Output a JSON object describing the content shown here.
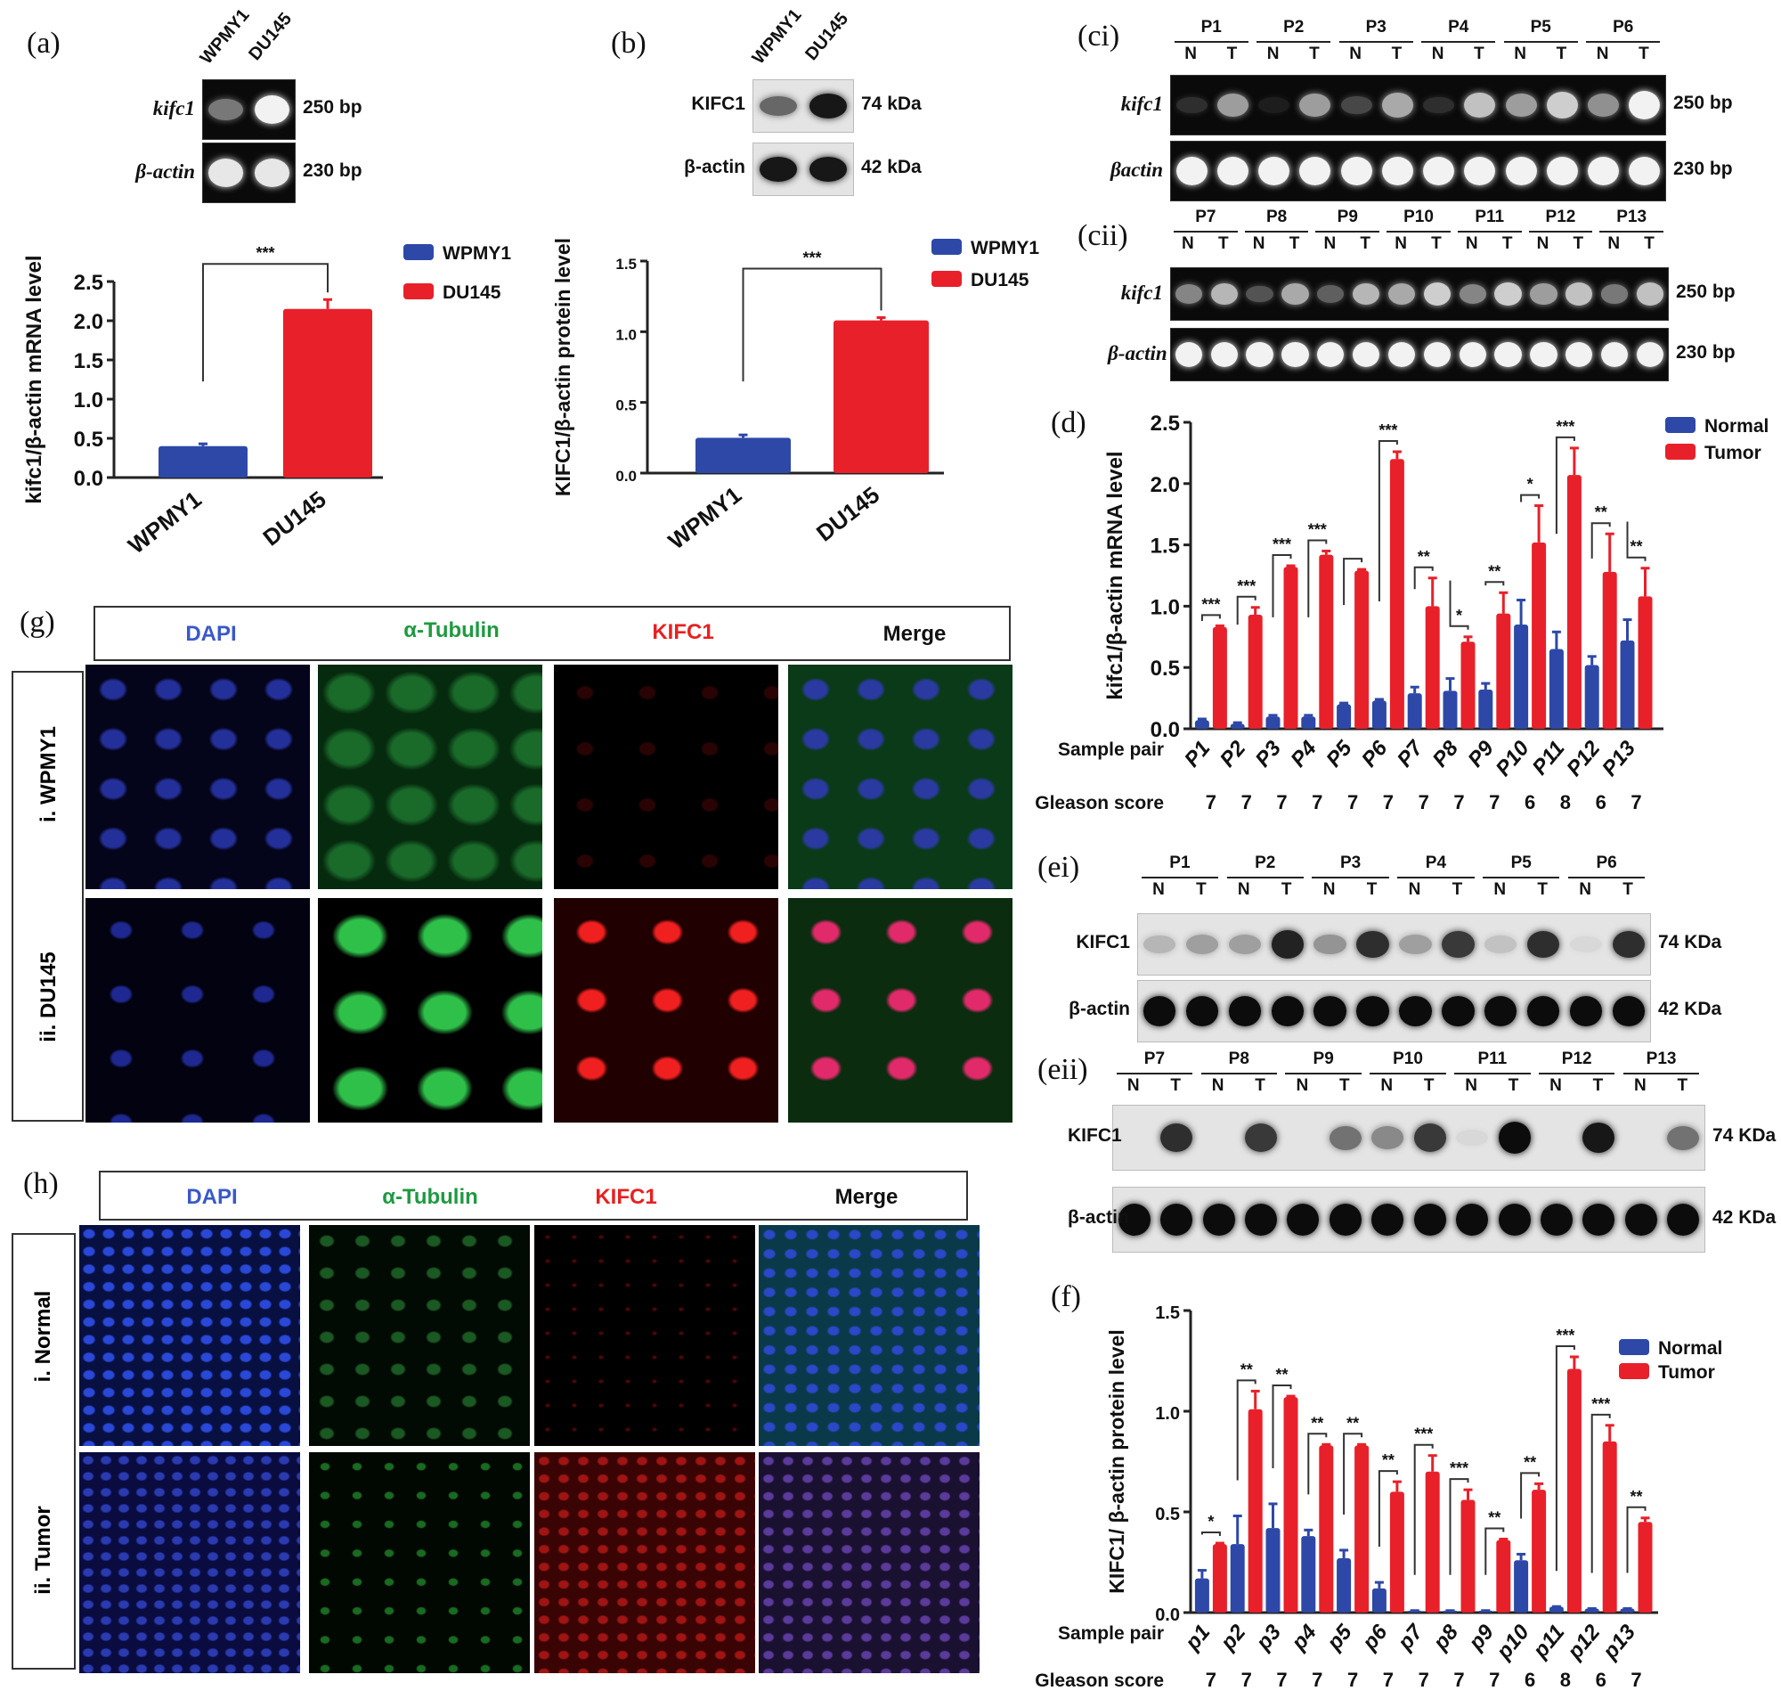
{
  "colors": {
    "normal": "#2e48a8",
    "tumor": "#e8202a",
    "dapi": "#3a58c8",
    "tubulin": "#1e9a40",
    "kifc1": "#e82020"
  },
  "panel_labels": {
    "a": "(a)",
    "b": "(b)",
    "ci": "(ci)",
    "cii": "(cii)",
    "d": "(d)",
    "ei": "(ei)",
    "eii": "(eii)",
    "f": "(f)",
    "g": "(g)",
    "h": "(h)"
  },
  "gel_a": {
    "lanes": [
      "WPMY1",
      "DU145"
    ],
    "rows": [
      {
        "label": "kifc1",
        "size": "250 bp"
      },
      {
        "label": "β-actin",
        "size": "230 bp"
      }
    ]
  },
  "blot_b": {
    "lanes": [
      "WPMY1",
      "DU145"
    ],
    "rows": [
      {
        "label": "KIFC1",
        "size": "74 kDa"
      },
      {
        "label": "β-actin",
        "size": "42 kDa"
      }
    ]
  },
  "gel_ci": {
    "pairs": [
      "P1",
      "P2",
      "P3",
      "P4",
      "P5",
      "P6"
    ],
    "lanes": [
      "N",
      "T"
    ],
    "rows": [
      {
        "label": "kifc1",
        "size": "250 bp"
      },
      {
        "label": "βactin",
        "size": "230 bp"
      }
    ]
  },
  "gel_cii": {
    "pairs": [
      "P7",
      "P8",
      "P9",
      "P10",
      "P11",
      "P12",
      "P13"
    ],
    "lanes": [
      "N",
      "T"
    ],
    "rows": [
      {
        "label": "kifc1",
        "size": "250 bp"
      },
      {
        "label": "β-actin",
        "size": "230 bp"
      }
    ]
  },
  "blot_ei": {
    "pairs": [
      "P1",
      "P2",
      "P3",
      "P4",
      "P5",
      "P6"
    ],
    "lanes": [
      "N",
      "T"
    ],
    "rows": [
      {
        "label": "KIFC1",
        "size": "74 KDa"
      },
      {
        "label": "β-actin",
        "size": "42 KDa"
      }
    ]
  },
  "blot_eii": {
    "pairs": [
      "P7",
      "P8",
      "P9",
      "P10",
      "P11",
      "P12",
      "P13"
    ],
    "lanes": [
      "N",
      "T"
    ],
    "rows": [
      {
        "label": "KIFC1",
        "size": "74 KDa"
      },
      {
        "label": "β-actin",
        "size": "42 KDa"
      }
    ]
  },
  "panel_g": {
    "columns": [
      "DAPI",
      "α-Tubulin",
      "KIFC1",
      "Merge"
    ],
    "rows": [
      "i.  WPMY1",
      "ii.  DU145"
    ]
  },
  "panel_h": {
    "columns": [
      "DAPI",
      "α-Tubulin",
      "KIFC1",
      "Merge"
    ],
    "rows": [
      "i.  Normal",
      "ii.  Tumor"
    ]
  },
  "chart_data": [
    {
      "id": "a",
      "type": "bar",
      "ylabel": "kifc1/β-actin mRNA level",
      "categories": [
        "WPMY1",
        "DU145"
      ],
      "series": [
        {
          "name": "WPMY1",
          "values": [
            0.4,
            null
          ],
          "errors": [
            0.03,
            null
          ]
        },
        {
          "name": "DU145",
          "values": [
            null,
            2.15
          ],
          "errors": [
            null,
            0.12
          ]
        }
      ],
      "significance": [
        "***"
      ],
      "ylim": [
        0,
        2.5
      ],
      "yticks": [
        "0.0",
        "0.5",
        "1.0",
        "1.5",
        "2.0",
        "2.5"
      ],
      "legend": "top-right"
    },
    {
      "id": "b",
      "type": "bar",
      "ylabel": "KIFC1/β-actin protein level",
      "categories": [
        "WPMY1",
        "DU145"
      ],
      "series": [
        {
          "name": "WPMY1",
          "values": [
            0.25,
            null
          ],
          "errors": [
            0.02,
            null
          ]
        },
        {
          "name": "DU145",
          "values": [
            null,
            1.08
          ],
          "errors": [
            null,
            0.02
          ]
        }
      ],
      "significance": [
        "***"
      ],
      "ylim": [
        0,
        1.5
      ],
      "yticks": [
        "0.0",
        "0.5",
        "1.0",
        "1.5"
      ],
      "legend": "top-right"
    },
    {
      "id": "d",
      "type": "bar",
      "ylabel": "kifc1/β-actin mRNA level",
      "row_labels": [
        "Sample pair",
        "Gleason score"
      ],
      "categories": [
        "P1",
        "P2",
        "P3",
        "P4",
        "P5",
        "P6",
        "P7",
        "P8",
        "P9",
        "P10",
        "P11",
        "P12",
        "P13"
      ],
      "gleason": [
        "7",
        "7",
        "7",
        "7",
        "7",
        "7",
        "7",
        "7",
        "7",
        "6",
        "8",
        "6",
        "7"
      ],
      "series": [
        {
          "name": "Normal",
          "values": [
            0.07,
            0.04,
            0.1,
            0.1,
            0.2,
            0.23,
            0.29,
            0.31,
            0.32,
            0.85,
            0.65,
            0.52,
            0.72
          ],
          "errors": [
            0.01,
            0.01,
            0.01,
            0.01,
            0.01,
            0.01,
            0.05,
            0.1,
            0.05,
            0.2,
            0.14,
            0.07,
            0.17
          ]
        },
        {
          "name": "Tumor",
          "values": [
            0.83,
            0.93,
            1.32,
            1.42,
            1.29,
            2.2,
            1.0,
            0.71,
            0.94,
            1.52,
            2.07,
            1.28,
            1.08
          ],
          "errors": [
            0.01,
            0.06,
            0.01,
            0.03,
            0.01,
            0.06,
            0.23,
            0.04,
            0.17,
            0.3,
            0.22,
            0.31,
            0.23
          ]
        }
      ],
      "significance": [
        "***",
        "***",
        "***",
        "***",
        "",
        "***",
        "**",
        "*",
        "**",
        "*",
        "***",
        "**",
        "**"
      ],
      "ylim": [
        0,
        2.5
      ],
      "yticks": [
        "0.0",
        "0.5",
        "1.0",
        "1.5",
        "2.0",
        "2.5"
      ],
      "legend": "top-right"
    },
    {
      "id": "f",
      "type": "bar",
      "ylabel": "KIFC1/ β-actin protein level",
      "row_labels": [
        "Sample pair",
        "Gleason score"
      ],
      "categories": [
        "p1",
        "p2",
        "p3",
        "p4",
        "p5",
        "p6",
        "p7",
        "p8",
        "p9",
        "p10",
        "p11",
        "p12",
        "p13"
      ],
      "gleason": [
        "7",
        "7",
        "7",
        "7",
        "7",
        "7",
        "7",
        "7",
        "7",
        "6",
        "8",
        "6",
        "7"
      ],
      "series": [
        {
          "name": "Normal",
          "values": [
            0.17,
            0.34,
            0.42,
            0.38,
            0.27,
            0.12,
            0.01,
            0.01,
            0.01,
            0.26,
            0.03,
            0.02,
            0.02
          ],
          "errors": [
            0.04,
            0.14,
            0.12,
            0.03,
            0.04,
            0.03,
            0,
            0,
            0,
            0.03,
            0,
            0,
            0
          ]
        },
        {
          "name": "Tumor",
          "values": [
            0.34,
            1.01,
            1.07,
            0.83,
            0.83,
            0.6,
            0.7,
            0.56,
            0.36,
            0.61,
            1.21,
            0.85,
            0.45
          ],
          "errors": [
            0.005,
            0.09,
            0.005,
            0.005,
            0.005,
            0.05,
            0.08,
            0.05,
            0.005,
            0.03,
            0.06,
            0.08,
            0.02
          ]
        }
      ],
      "significance": [
        "*",
        "**",
        "**",
        "**",
        "**",
        "**",
        "***",
        "***",
        "**",
        "**",
        "***",
        "***",
        "**"
      ],
      "ylim": [
        0,
        1.5
      ],
      "yticks": [
        "0.0",
        "0.5",
        "1.0",
        "1.5"
      ],
      "legend": "top-right"
    }
  ]
}
